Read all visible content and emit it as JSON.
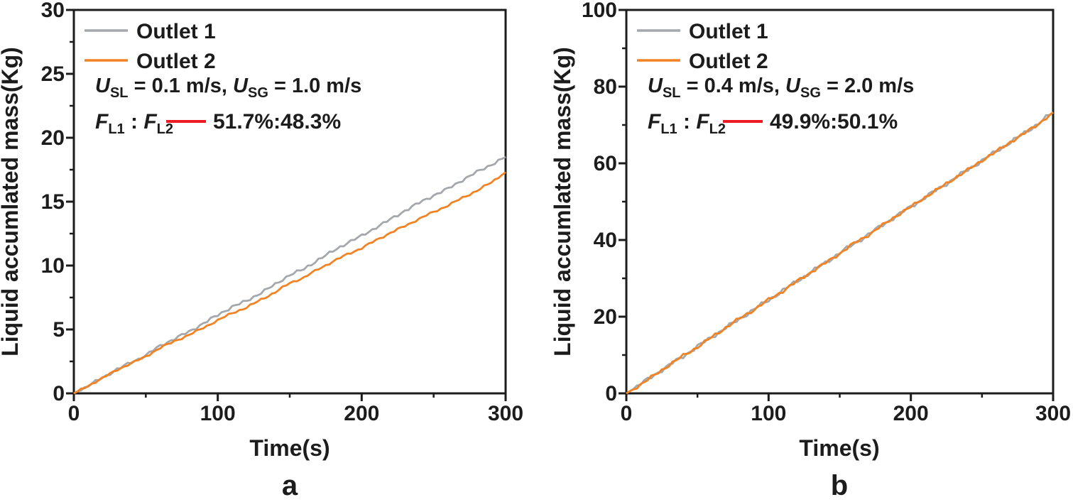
{
  "colors": {
    "ink": "#1c1c1c",
    "red": "#ed1c24",
    "outlet1_gray": "#a4a7ab",
    "outlet2_orange": "#f28222"
  },
  "chart_data": [
    {
      "type": "line",
      "panel_label": "a",
      "xlabel": "Time(s)",
      "ylabel": "Liquid accumlated mass(Kg)",
      "xlim": [
        0,
        300
      ],
      "ylim": [
        0,
        30
      ],
      "xticks": [
        0,
        100,
        200,
        300
      ],
      "yticks": [
        0,
        5,
        10,
        15,
        20,
        25,
        30
      ],
      "x_minor_step": 50,
      "y_minor_step": 2.5,
      "legend": [
        "Outlet 1",
        "Outlet 2"
      ],
      "condition": {
        "u1_sym": "U",
        "u1_sub": "SL",
        "u1_rest": " = 0.1 m/s, ",
        "u2_sym": "U",
        "u2_sub": "SG",
        "u2_rest": " = 1.0 m/s"
      },
      "ratio": {
        "f1_sym": "F",
        "f1_sub": "L1",
        "sep": " : ",
        "f2_sym": "F",
        "f2_sub": "L2",
        "value": "51.7%:48.3%"
      },
      "x": [
        0,
        10,
        20,
        30,
        40,
        50,
        60,
        70,
        80,
        90,
        100,
        110,
        120,
        130,
        140,
        150,
        160,
        170,
        180,
        190,
        200,
        210,
        220,
        230,
        240,
        250,
        260,
        270,
        280,
        290,
        300
      ],
      "series": [
        {
          "name": "Outlet 1",
          "color": "#a4a7ab",
          "values": [
            0,
            0.6,
            1.2,
            1.9,
            2.4,
            3.0,
            3.7,
            4.3,
            4.8,
            5.5,
            6.1,
            6.8,
            7.2,
            7.9,
            8.5,
            9.3,
            9.7,
            10.5,
            11.1,
            11.8,
            12.3,
            13.0,
            13.6,
            14.3,
            14.9,
            15.5,
            16.0,
            16.7,
            17.3,
            17.9,
            18.5
          ]
        },
        {
          "name": "Outlet 2",
          "color": "#f28222",
          "values": [
            0,
            0.6,
            1.2,
            1.85,
            2.35,
            2.9,
            3.55,
            4.1,
            4.55,
            5.15,
            5.7,
            6.3,
            6.7,
            7.35,
            7.9,
            8.65,
            9.05,
            9.75,
            10.3,
            10.9,
            11.35,
            12.0,
            12.55,
            13.1,
            13.65,
            14.2,
            14.7,
            15.3,
            15.85,
            16.5,
            17.3
          ]
        }
      ]
    },
    {
      "type": "line",
      "panel_label": "b",
      "xlabel": "Time(s)",
      "ylabel": "Liquid accumlated mass(Kg)",
      "xlim": [
        0,
        300
      ],
      "ylim": [
        0,
        100
      ],
      "xticks": [
        0,
        100,
        200,
        300
      ],
      "yticks": [
        0,
        20,
        40,
        60,
        80,
        100
      ],
      "x_minor_step": 50,
      "y_minor_step": 10,
      "legend": [
        "Outlet 1",
        "Outlet 2"
      ],
      "condition": {
        "u1_sym": "U",
        "u1_sub": "SL",
        "u1_rest": " = 0.4 m/s, ",
        "u2_sym": "U",
        "u2_sub": "SG",
        "u2_rest": " = 2.0 m/s"
      },
      "ratio": {
        "f1_sym": "F",
        "f1_sub": "L1",
        "sep": " : ",
        "f2_sym": "F",
        "f2_sub": "L2",
        "value": "49.9%:50.1%"
      },
      "x": [
        0,
        10,
        20,
        30,
        40,
        50,
        60,
        70,
        80,
        90,
        100,
        110,
        120,
        130,
        140,
        150,
        160,
        170,
        180,
        190,
        200,
        210,
        220,
        230,
        240,
        250,
        260,
        270,
        280,
        290,
        300
      ],
      "series": [
        {
          "name": "Outlet 1",
          "color": "#a4a7ab",
          "values": [
            0,
            2.4,
            4.9,
            7.3,
            9.7,
            12.2,
            14.7,
            17.1,
            19.5,
            22.0,
            24.3,
            26.8,
            29.3,
            31.6,
            34.1,
            36.6,
            39.0,
            41.4,
            43.9,
            46.3,
            48.7,
            51.1,
            53.5,
            55.9,
            58.3,
            60.7,
            63.1,
            65.5,
            67.9,
            70.5,
            73.3
          ]
        },
        {
          "name": "Outlet 2",
          "color": "#f28222",
          "values": [
            0,
            2.3,
            4.8,
            7.4,
            9.8,
            12.1,
            14.6,
            17.2,
            19.6,
            21.9,
            24.4,
            26.7,
            29.2,
            31.7,
            34.0,
            36.5,
            39.1,
            41.3,
            43.8,
            46.4,
            48.6,
            51.2,
            53.4,
            56.0,
            58.2,
            60.8,
            63.0,
            65.6,
            67.8,
            70.4,
            73.3
          ]
        }
      ]
    }
  ]
}
